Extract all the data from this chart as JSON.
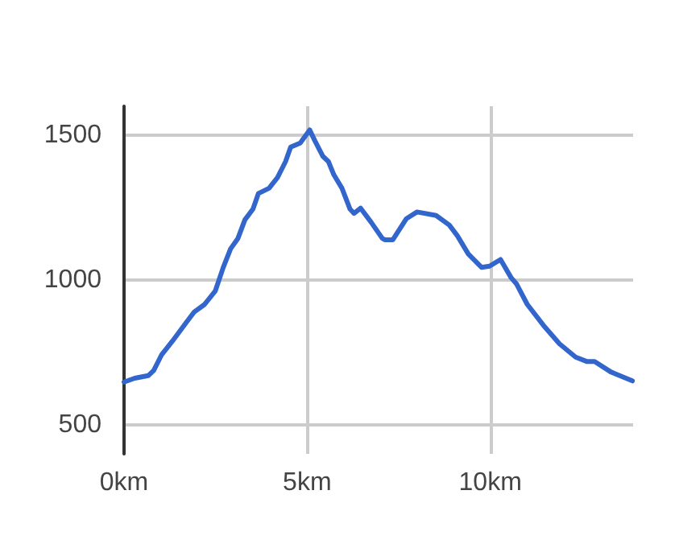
{
  "chart_data": {
    "type": "line",
    "x": [
      0,
      0.29,
      0.66,
      0.81,
      1.03,
      1.32,
      1.69,
      1.91,
      2.2,
      2.49,
      2.71,
      2.91,
      3.11,
      3.3,
      3.52,
      3.67,
      3.96,
      4.19,
      4.41,
      4.55,
      4.81,
      5.07,
      5.21,
      5.43,
      5.58,
      5.73,
      5.95,
      6.17,
      6.28,
      6.46,
      6.75,
      7.05,
      7.12,
      7.34,
      7.71,
      8.0,
      8.52,
      8.88,
      9.1,
      9.4,
      9.76,
      9.98,
      10.28,
      10.57,
      10.72,
      11.01,
      11.45,
      11.89,
      12.33,
      12.63,
      12.85,
      13.29,
      13.88
    ],
    "series": [
      {
        "color": "#3366cc",
        "values": [
          648,
          661,
          670,
          688,
          743,
          789,
          852,
          889,
          916,
          962,
          1044,
          1108,
          1144,
          1208,
          1245,
          1299,
          1317,
          1354,
          1409,
          1459,
          1473,
          1518,
          1481,
          1427,
          1409,
          1363,
          1317,
          1245,
          1230,
          1248,
          1199,
          1144,
          1139,
          1139,
          1212,
          1235,
          1223,
          1190,
          1153,
          1090,
          1044,
          1048,
          1071,
          1008,
          986,
          916,
          844,
          780,
          734,
          719,
          719,
          683,
          652
        ]
      }
    ],
    "xlim": [
      0,
      13.9
    ],
    "xticks": [
      {
        "value": 0,
        "label": "0km"
      },
      {
        "value": 5,
        "label": "5km"
      },
      {
        "value": 10,
        "label": "10km"
      }
    ],
    "ylim": [
      400,
      1600
    ],
    "yticks": [
      500,
      1000,
      1500
    ],
    "grid": true,
    "marker": "none",
    "line_style": "solid"
  }
}
